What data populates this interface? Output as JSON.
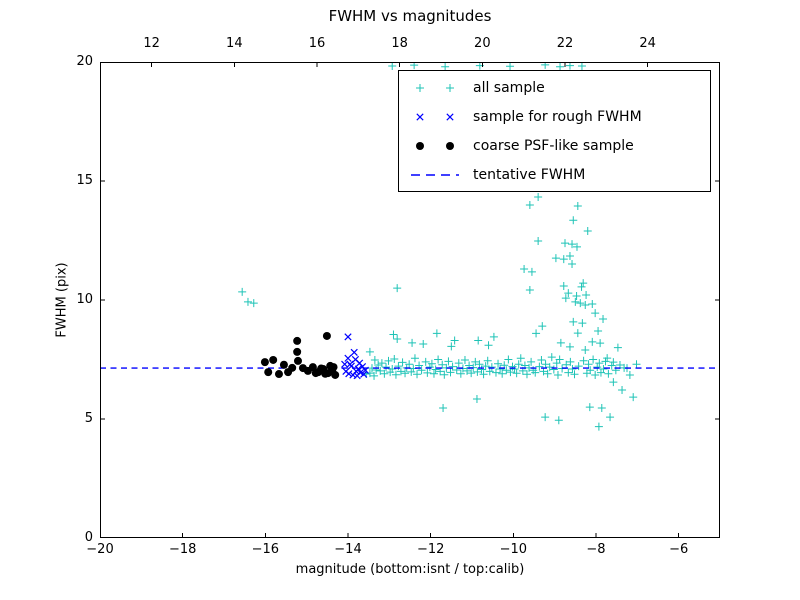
{
  "title": "FWHM vs magnitudes",
  "colors": {
    "all_sample": "#1ec3b6",
    "rough_sample": "#0000ff",
    "psf_sample": "#000000",
    "tentative_line": "#0000ff",
    "axis": "#000000"
  },
  "axes": {
    "xlabel": "magnitude (bottom:isnt / top:calib)",
    "ylabel": "FWHM (pix)",
    "x_range": [
      -20,
      -5
    ],
    "y_range": [
      0,
      20
    ],
    "bottom_ticks": [
      {
        "label": "−20",
        "value": -20
      },
      {
        "label": "−18",
        "value": -18
      },
      {
        "label": "−16",
        "value": -16
      },
      {
        "label": "−14",
        "value": -14
      },
      {
        "label": "−12",
        "value": -12
      },
      {
        "label": "−10",
        "value": -10
      },
      {
        "label": "−8",
        "value": -8
      },
      {
        "label": "−6",
        "value": -6
      }
    ],
    "top_ticks": [
      {
        "label": "12",
        "value": -18.75
      },
      {
        "label": "14",
        "value": -16.75
      },
      {
        "label": "16",
        "value": -14.75
      },
      {
        "label": "18",
        "value": -12.75
      },
      {
        "label": "20",
        "value": -10.75
      },
      {
        "label": "22",
        "value": -8.75
      },
      {
        "label": "24",
        "value": -6.75
      }
    ],
    "y_ticks": [
      {
        "label": "0",
        "value": 0
      },
      {
        "label": "5",
        "value": 5
      },
      {
        "label": "10",
        "value": 10
      },
      {
        "label": "15",
        "value": 15
      },
      {
        "label": "20",
        "value": 20
      }
    ]
  },
  "legend": {
    "items": [
      {
        "label": "all sample",
        "marker": "plus",
        "color": "#1ec3b6"
      },
      {
        "label": "sample for rough FWHM",
        "marker": "cross",
        "color": "#0000ff"
      },
      {
        "label": "coarse PSF-like sample",
        "marker": "dot",
        "color": "#000000"
      },
      {
        "label": "tentative FWHM",
        "marker": "dashed-line",
        "color": "#0000ff"
      }
    ]
  },
  "chart_data": {
    "type": "scatter",
    "title": "FWHM vs magnitudes",
    "xlabel": "magnitude (bottom:isnt / top:calib)",
    "ylabel": "FWHM (pix)",
    "xlim": [
      -20,
      -5
    ],
    "ylim": [
      0,
      20
    ],
    "top_axis_offset": 30.75,
    "tentative_fwhm": 7.14,
    "legend_position": "upper right",
    "grid": false,
    "series": [
      {
        "name": "all sample",
        "marker": "plus",
        "color": "#1ec3b6",
        "points": [
          [
            -12.93,
            19.83
          ],
          [
            -12.4,
            19.87
          ],
          [
            -11.65,
            19.8
          ],
          [
            -10.81,
            19.85
          ],
          [
            -10.08,
            19.82
          ],
          [
            -9.23,
            19.88
          ],
          [
            -8.87,
            19.8
          ],
          [
            -8.63,
            19.85
          ],
          [
            -8.34,
            19.83
          ],
          [
            -16.56,
            10.34
          ],
          [
            -16.42,
            9.92
          ],
          [
            -16.28,
            9.87
          ],
          [
            -12.81,
            10.5
          ],
          [
            -13.56,
            6.89
          ],
          [
            -13.47,
            6.93
          ],
          [
            -13.47,
            7.82
          ],
          [
            -13.42,
            7.14
          ],
          [
            -13.37,
            6.81
          ],
          [
            -13.35,
            7.48
          ],
          [
            -13.32,
            7.06
          ],
          [
            -13.27,
            7.27
          ],
          [
            -13.22,
            7.02
          ],
          [
            -13.18,
            7.35
          ],
          [
            -13.12,
            6.9
          ],
          [
            -13.08,
            7.18
          ],
          [
            -13.02,
            7.44
          ],
          [
            -12.98,
            6.97
          ],
          [
            -12.93,
            7.1
          ],
          [
            -12.9,
            8.55
          ],
          [
            -12.88,
            7.52
          ],
          [
            -12.84,
            6.86
          ],
          [
            -12.81,
            8.36
          ],
          [
            -12.78,
            7.22
          ],
          [
            -12.72,
            7.0
          ],
          [
            -12.68,
            7.38
          ],
          [
            -12.62,
            6.92
          ],
          [
            -12.58,
            7.15
          ],
          [
            -12.52,
            7.3
          ],
          [
            -12.47,
            6.98
          ],
          [
            -12.45,
            8.2
          ],
          [
            -12.42,
            7.12
          ],
          [
            -12.38,
            7.55
          ],
          [
            -12.33,
            6.88
          ],
          [
            -12.28,
            7.25
          ],
          [
            -12.22,
            7.05
          ],
          [
            -12.18,
            8.15
          ],
          [
            -12.12,
            7.4
          ],
          [
            -12.08,
            6.94
          ],
          [
            -12.02,
            7.18
          ],
          [
            -11.97,
            7.32
          ],
          [
            -11.92,
            6.9
          ],
          [
            -11.88,
            7.08
          ],
          [
            -11.85,
            8.6
          ],
          [
            -11.82,
            7.5
          ],
          [
            -11.77,
            7.0
          ],
          [
            -11.72,
            7.28
          ],
          [
            -11.7,
            5.46
          ],
          [
            -11.67,
            6.86
          ],
          [
            -11.62,
            7.15
          ],
          [
            -11.57,
            7.42
          ],
          [
            -11.52,
            6.96
          ],
          [
            -11.5,
            8.05
          ],
          [
            -11.47,
            7.2
          ],
          [
            -11.42,
            8.3
          ],
          [
            -11.37,
            7.06
          ],
          [
            -11.32,
            7.35
          ],
          [
            -11.27,
            6.9
          ],
          [
            -11.22,
            7.12
          ],
          [
            -11.17,
            7.48
          ],
          [
            -11.12,
            7.02
          ],
          [
            -11.07,
            7.25
          ],
          [
            -11.02,
            6.93
          ],
          [
            -10.97,
            7.16
          ],
          [
            -10.92,
            7.4
          ],
          [
            -10.88,
            5.84
          ],
          [
            -10.87,
            6.98
          ],
          [
            -10.85,
            8.3
          ],
          [
            -10.82,
            7.3
          ],
          [
            -10.77,
            7.08
          ],
          [
            -10.72,
            6.88
          ],
          [
            -10.67,
            7.22
          ],
          [
            -10.62,
            7.45
          ],
          [
            -10.6,
            8.1
          ],
          [
            -10.57,
            7.0
          ],
          [
            -10.52,
            7.18
          ],
          [
            -10.47,
            8.45
          ],
          [
            -10.42,
            6.95
          ],
          [
            -10.37,
            7.32
          ],
          [
            -10.32,
            7.1
          ],
          [
            -10.27,
            6.9
          ],
          [
            -10.22,
            7.26
          ],
          [
            -10.17,
            7.05
          ],
          [
            -10.12,
            7.5
          ],
          [
            -10.07,
            6.97
          ],
          [
            -10.02,
            7.2
          ],
          [
            -9.97,
            7.1
          ],
          [
            -9.92,
            6.92
          ],
          [
            -9.87,
            7.3
          ],
          [
            -9.82,
            7.55
          ],
          [
            -9.77,
            7.02
          ],
          [
            -9.74,
            11.3
          ],
          [
            -9.72,
            7.25
          ],
          [
            -9.67,
            6.88
          ],
          [
            -9.62,
            7.15
          ],
          [
            -9.6,
            13.99
          ],
          [
            -9.6,
            10.42
          ],
          [
            -9.57,
            7.4
          ],
          [
            -9.55,
            11.18
          ],
          [
            -9.52,
            7.05
          ],
          [
            -9.47,
            6.95
          ],
          [
            -9.45,
            8.6
          ],
          [
            -9.4,
            14.33
          ],
          [
            -9.4,
            12.48
          ],
          [
            -9.37,
            7.2
          ],
          [
            -9.32,
            7.48
          ],
          [
            -9.3,
            8.9
          ],
          [
            -9.27,
            7.0
          ],
          [
            -9.23,
            5.08
          ],
          [
            -9.22,
            7.3
          ],
          [
            -9.17,
            6.9
          ],
          [
            -9.12,
            7.18
          ],
          [
            -9.07,
            7.6
          ],
          [
            -9.02,
            7.08
          ],
          [
            -8.97,
            11.76
          ],
          [
            -8.95,
            7.35
          ],
          [
            -8.92,
            6.85
          ],
          [
            -8.9,
            4.95
          ],
          [
            -8.88,
            7.5
          ],
          [
            -8.85,
            8.2
          ],
          [
            -8.82,
            7.12
          ],
          [
            -8.78,
            11.72
          ],
          [
            -8.78,
            10.59
          ],
          [
            -8.75,
            12.39
          ],
          [
            -8.73,
            10.08
          ],
          [
            -8.72,
            7.28
          ],
          [
            -8.67,
            10.29
          ],
          [
            -8.67,
            6.95
          ],
          [
            -8.63,
            11.85
          ],
          [
            -8.63,
            8.03
          ],
          [
            -8.62,
            7.4
          ],
          [
            -8.58,
            12.35
          ],
          [
            -8.58,
            11.51
          ],
          [
            -8.57,
            7.1
          ],
          [
            -8.55,
            13.35
          ],
          [
            -8.55,
            9.08
          ],
          [
            -8.52,
            6.88
          ],
          [
            -8.5,
            9.92
          ],
          [
            -8.47,
            10.17
          ],
          [
            -8.46,
            12.23
          ],
          [
            -8.44,
            13.95
          ],
          [
            -8.44,
            8.61
          ],
          [
            -8.42,
            7.22
          ],
          [
            -8.38,
            9.87
          ],
          [
            -8.35,
            10.55
          ],
          [
            -8.33,
            9.03
          ],
          [
            -8.31,
            10.71
          ],
          [
            -8.3,
            7.45
          ],
          [
            -8.26,
            9.79
          ],
          [
            -8.26,
            7.9
          ],
          [
            -8.24,
            10.21
          ],
          [
            -8.22,
            6.92
          ],
          [
            -8.2,
            12.9
          ],
          [
            -8.18,
            7.3
          ],
          [
            -8.15,
            5.5
          ],
          [
            -8.14,
            7.05
          ],
          [
            -8.09,
            9.83
          ],
          [
            -8.09,
            8.24
          ],
          [
            -8.07,
            7.5
          ],
          [
            -8.02,
            9.45
          ],
          [
            -8.02,
            6.85
          ],
          [
            -7.97,
            7.18
          ],
          [
            -7.95,
            8.7
          ],
          [
            -7.93,
            4.68
          ],
          [
            -7.92,
            7.35
          ],
          [
            -7.9,
            8.19
          ],
          [
            -7.88,
            6.95
          ],
          [
            -7.86,
            5.46
          ],
          [
            -7.83,
            9.2
          ],
          [
            -7.82,
            7.1
          ],
          [
            -7.77,
            7.42
          ],
          [
            -7.73,
            7.56
          ],
          [
            -7.7,
            6.9
          ],
          [
            -7.66,
            5.08
          ],
          [
            -7.62,
            7.25
          ],
          [
            -7.58,
            7.39
          ],
          [
            -7.58,
            6.55
          ],
          [
            -7.52,
            7.05
          ],
          [
            -7.47,
            8.0
          ],
          [
            -7.42,
            7.27
          ],
          [
            -7.37,
            6.22
          ],
          [
            -7.32,
            7.15
          ],
          [
            -7.25,
            7.14
          ],
          [
            -7.18,
            6.85
          ],
          [
            -7.1,
            5.92
          ],
          [
            -7.02,
            7.3
          ]
        ]
      },
      {
        "name": "sample for rough FWHM",
        "marker": "cross",
        "color": "#0000ff",
        "points": [
          [
            -14.0,
            8.45
          ],
          [
            -14.08,
            7.3
          ],
          [
            -14.05,
            7.0
          ],
          [
            -14.0,
            7.55
          ],
          [
            -13.98,
            6.9
          ],
          [
            -13.95,
            7.3
          ],
          [
            -13.92,
            7.22
          ],
          [
            -13.88,
            6.85
          ],
          [
            -13.85,
            7.8
          ],
          [
            -13.82,
            7.5
          ],
          [
            -13.8,
            7.0
          ],
          [
            -13.78,
            6.82
          ],
          [
            -13.75,
            7.1
          ],
          [
            -13.72,
            7.35
          ],
          [
            -13.7,
            6.95
          ],
          [
            -13.65,
            7.2
          ],
          [
            -13.62,
            6.88
          ],
          [
            -13.58,
            7.05
          ]
        ]
      },
      {
        "name": "coarse PSF-like sample",
        "marker": "dot",
        "color": "#000000",
        "points": [
          [
            -16.01,
            7.39
          ],
          [
            -15.93,
            6.97
          ],
          [
            -15.81,
            7.48
          ],
          [
            -15.67,
            6.89
          ],
          [
            -15.55,
            7.28
          ],
          [
            -15.45,
            6.97
          ],
          [
            -15.35,
            7.15
          ],
          [
            -15.23,
            8.28
          ],
          [
            -15.23,
            7.82
          ],
          [
            -15.21,
            7.44
          ],
          [
            -15.09,
            7.14
          ],
          [
            -14.97,
            7.02
          ],
          [
            -14.85,
            7.18
          ],
          [
            -14.78,
            6.93
          ],
          [
            -14.72,
            6.97
          ],
          [
            -14.65,
            7.12
          ],
          [
            -14.6,
            7.1
          ],
          [
            -14.55,
            6.9
          ],
          [
            -14.51,
            8.49
          ],
          [
            -14.48,
            6.93
          ],
          [
            -14.43,
            7.23
          ],
          [
            -14.38,
            7.0
          ],
          [
            -14.35,
            7.18
          ],
          [
            -14.31,
            6.85
          ]
        ]
      },
      {
        "name": "tentative FWHM",
        "type": "hline",
        "style": "dashed",
        "color": "#0000ff",
        "y": 7.14
      }
    ]
  }
}
